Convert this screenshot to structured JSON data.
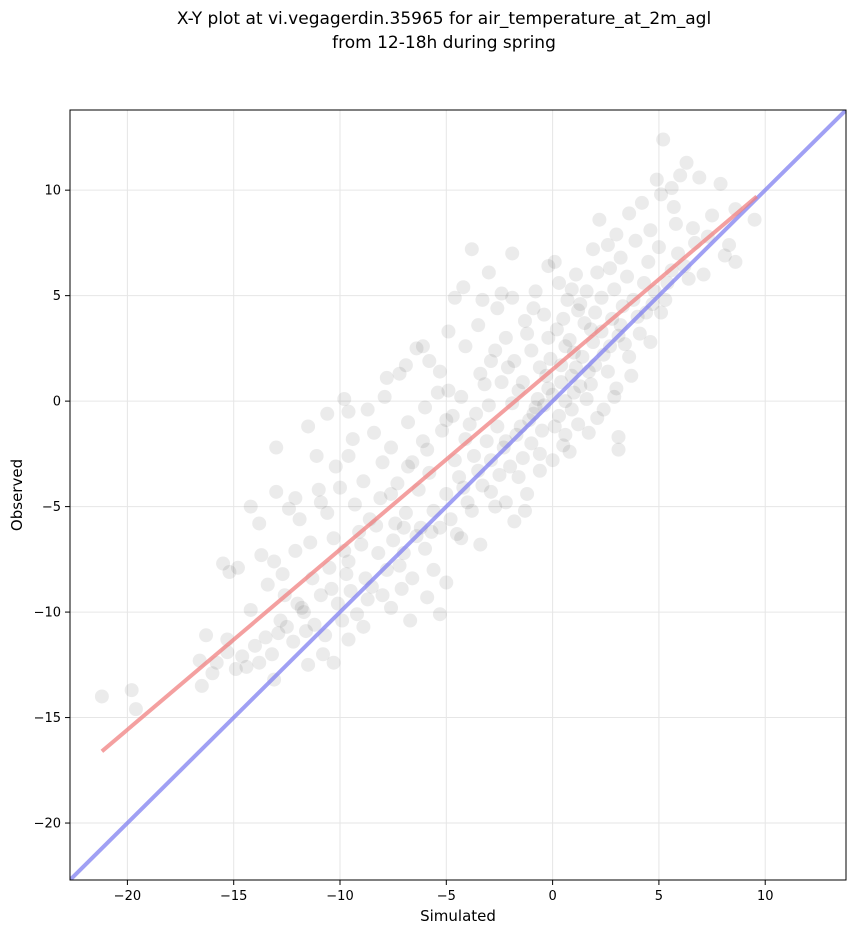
{
  "chart_data": {
    "type": "scatter",
    "title_line1": "X-Y plot at vi.vegagerdin.35965 for air_temperature_at_2m_agl",
    "title_line2": "from 12-18h during spring",
    "xlabel": "Simulated",
    "ylabel": "Observed",
    "xlim": [
      -22.7,
      13.8
    ],
    "ylim": [
      -22.7,
      13.8
    ],
    "xticks": [
      -20,
      -15,
      -10,
      -5,
      0,
      5,
      10
    ],
    "yticks": [
      -20,
      -15,
      -10,
      -5,
      0,
      5,
      10
    ],
    "xtick_labels": [
      "−20",
      "−15",
      "−10",
      "−5",
      "0",
      "5",
      "10"
    ],
    "ytick_labels": [
      "−20",
      "−15",
      "−10",
      "−5",
      "0",
      "5",
      "10"
    ],
    "grid": true,
    "point_color": "#000000",
    "point_alpha": 0.08,
    "regression_line": {
      "color": "#f08080",
      "x": [
        -21.2,
        9.6
      ],
      "y": [
        -16.6,
        9.7
      ]
    },
    "identity_line": {
      "color": "#8080f0",
      "x": [
        -22.7,
        13.8
      ],
      "y": [
        -22.7,
        13.8
      ]
    },
    "points": [
      {
        "x": -21.2,
        "y": -14.0
      },
      {
        "x": -19.8,
        "y": -13.7
      },
      {
        "x": -19.6,
        "y": -14.6
      },
      {
        "x": -16.6,
        "y": -12.3
      },
      {
        "x": -16.3,
        "y": -11.1
      },
      {
        "x": -16.5,
        "y": -13.5
      },
      {
        "x": -15.5,
        "y": -7.7
      },
      {
        "x": -15.2,
        "y": -8.1
      },
      {
        "x": -14.8,
        "y": -7.9
      },
      {
        "x": -13.7,
        "y": -7.3
      },
      {
        "x": -13.4,
        "y": -8.7
      },
      {
        "x": -13.1,
        "y": -7.6
      },
      {
        "x": -14.2,
        "y": -5.0
      },
      {
        "x": -13.8,
        "y": -5.8
      },
      {
        "x": -13.0,
        "y": -4.3
      },
      {
        "x": -13.0,
        "y": -2.2
      },
      {
        "x": -12.4,
        "y": -5.1
      },
      {
        "x": -12.1,
        "y": -4.6
      },
      {
        "x": -11.5,
        "y": -1.2
      },
      {
        "x": -11.1,
        "y": -2.6
      },
      {
        "x": -10.6,
        "y": -0.6
      },
      {
        "x": -9.8,
        "y": 0.1
      },
      {
        "x": -9.6,
        "y": -0.5
      },
      {
        "x": -7.8,
        "y": 1.1
      },
      {
        "x": -7.2,
        "y": 1.3
      },
      {
        "x": -6.4,
        "y": 2.5
      },
      {
        "x": -6.1,
        "y": 2.6
      },
      {
        "x": -4.6,
        "y": 4.9
      },
      {
        "x": -4.2,
        "y": 5.4
      },
      {
        "x": -3.8,
        "y": 7.2
      },
      {
        "x": -3.0,
        "y": 6.1
      },
      {
        "x": -1.9,
        "y": 7.0
      },
      {
        "x": -0.2,
        "y": 6.4
      },
      {
        "x": 0.1,
        "y": 6.6
      },
      {
        "x": 1.1,
        "y": 6.0
      },
      {
        "x": 2.2,
        "y": 8.6
      },
      {
        "x": 3.6,
        "y": 8.9
      },
      {
        "x": 4.9,
        "y": 10.5
      },
      {
        "x": 5.2,
        "y": 12.4
      },
      {
        "x": 5.6,
        "y": 10.1
      },
      {
        "x": 6.3,
        "y": 11.3
      },
      {
        "x": 6.9,
        "y": 10.6
      },
      {
        "x": 7.9,
        "y": 10.3
      },
      {
        "x": 8.6,
        "y": 9.1
      },
      {
        "x": 9.5,
        "y": 8.6
      },
      {
        "x": 8.1,
        "y": 6.9
      },
      {
        "x": 8.6,
        "y": 6.6
      },
      {
        "x": 6.4,
        "y": 5.8
      },
      {
        "x": 5.3,
        "y": 4.8
      },
      {
        "x": 4.4,
        "y": 4.2
      },
      {
        "x": 3.1,
        "y": -1.7
      },
      {
        "x": 3.1,
        "y": -2.3
      },
      {
        "x": 1.7,
        "y": -1.5
      },
      {
        "x": 0.6,
        "y": -1.6
      },
      {
        "x": -0.6,
        "y": -2.5
      },
      {
        "x": -1.2,
        "y": -4.4
      },
      {
        "x": -2.7,
        "y": -5.0
      },
      {
        "x": -1.8,
        "y": -5.7
      },
      {
        "x": -3.4,
        "y": -6.8
      },
      {
        "x": -4.3,
        "y": -6.5
      },
      {
        "x": -5.7,
        "y": -6.2
      },
      {
        "x": -5.6,
        "y": -8.0
      },
      {
        "x": -5.0,
        "y": -8.6
      },
      {
        "x": -5.3,
        "y": -10.1
      },
      {
        "x": -6.7,
        "y": -10.4
      },
      {
        "x": -7.1,
        "y": -8.9
      },
      {
        "x": -8.7,
        "y": -9.4
      },
      {
        "x": -9.2,
        "y": -10.1
      },
      {
        "x": -10.8,
        "y": -12.0
      },
      {
        "x": -11.5,
        "y": -12.5
      },
      {
        "x": -13.1,
        "y": -13.2
      },
      {
        "x": -13.8,
        "y": -12.4
      },
      {
        "x": -14.9,
        "y": -12.7
      },
      {
        "x": -15.3,
        "y": -11.3
      },
      {
        "x": -15.3,
        "y": -11.9
      },
      {
        "x": -14.2,
        "y": -9.9
      },
      {
        "x": -12.6,
        "y": -9.2
      },
      {
        "x": -11.8,
        "y": -9.8
      },
      {
        "x": -11.2,
        "y": -10.6
      },
      {
        "x": -10.4,
        "y": -8.9
      },
      {
        "x": -9.6,
        "y": -7.6
      },
      {
        "x": -9.1,
        "y": -6.2
      },
      {
        "x": -10.3,
        "y": -6.5
      },
      {
        "x": -10.9,
        "y": -4.8
      },
      {
        "x": -10.2,
        "y": -3.1
      },
      {
        "x": -9.6,
        "y": -2.6
      },
      {
        "x": -8.4,
        "y": -1.5
      },
      {
        "x": -8.9,
        "y": -3.8
      },
      {
        "x": -8.1,
        "y": -4.6
      },
      {
        "x": -7.4,
        "y": -5.8
      },
      {
        "x": -7.6,
        "y": -2.2
      },
      {
        "x": -6.8,
        "y": -1.0
      },
      {
        "x": -6.0,
        "y": -0.3
      },
      {
        "x": -5.3,
        "y": 1.4
      },
      {
        "x": -4.9,
        "y": 0.5
      },
      {
        "x": -4.1,
        "y": 2.6
      },
      {
        "x": -3.5,
        "y": 3.6
      },
      {
        "x": -2.6,
        "y": 4.4
      },
      {
        "x": -1.9,
        "y": 4.9
      },
      {
        "x": -1.2,
        "y": 3.2
      },
      {
        "x": -0.8,
        "y": 5.2
      },
      {
        "x": 0.3,
        "y": 5.6
      },
      {
        "x": 1.3,
        "y": 4.6
      },
      {
        "x": 2.1,
        "y": 6.1
      },
      {
        "x": 2.6,
        "y": 7.4
      },
      {
        "x": 3.2,
        "y": 6.8
      },
      {
        "x": 3.9,
        "y": 7.6
      },
      {
        "x": 4.6,
        "y": 8.1
      },
      {
        "x": 5.8,
        "y": 8.4
      },
      {
        "x": 6.6,
        "y": 8.2
      },
      {
        "x": 7.3,
        "y": 7.8
      },
      {
        "x": 7.1,
        "y": 6.0
      },
      {
        "x": 6.2,
        "y": 6.4
      },
      {
        "x": 5.6,
        "y": 6.2
      },
      {
        "x": 4.8,
        "y": 5.2
      },
      {
        "x": 4.1,
        "y": 3.2
      },
      {
        "x": 3.6,
        "y": 2.1
      },
      {
        "x": 3.0,
        "y": 0.6
      },
      {
        "x": 2.4,
        "y": -0.4
      },
      {
        "x": 1.8,
        "y": 0.8
      },
      {
        "x": 1.1,
        "y": 1.6
      },
      {
        "x": 0.6,
        "y": 2.6
      },
      {
        "x": 0.2,
        "y": 3.4
      },
      {
        "x": -0.3,
        "y": 1.2
      },
      {
        "x": -0.7,
        "y": 0.1
      },
      {
        "x": -1.1,
        "y": -0.9
      },
      {
        "x": -1.6,
        "y": 0.5
      },
      {
        "x": -2.1,
        "y": 1.6
      },
      {
        "x": -2.7,
        "y": 2.4
      },
      {
        "x": -3.2,
        "y": 0.8
      },
      {
        "x": -3.6,
        "y": -0.6
      },
      {
        "x": -4.1,
        "y": -1.8
      },
      {
        "x": -4.6,
        "y": -2.8
      },
      {
        "x": -5.2,
        "y": -1.4
      },
      {
        "x": -5.8,
        "y": -3.4
      },
      {
        "x": -6.3,
        "y": -4.2
      },
      {
        "x": -6.9,
        "y": -5.3
      },
      {
        "x": -7.5,
        "y": -6.6
      },
      {
        "x": -8.2,
        "y": -7.2
      },
      {
        "x": -8.8,
        "y": -8.4
      },
      {
        "x": -9.5,
        "y": -9.0
      },
      {
        "x": -10.1,
        "y": -9.6
      },
      {
        "x": -11.6,
        "y": -10.9
      },
      {
        "x": -12.2,
        "y": -11.4
      },
      {
        "x": -12.8,
        "y": -10.4
      },
      {
        "x": -14.0,
        "y": -11.6
      },
      {
        "x": -14.6,
        "y": -12.1
      },
      {
        "x": -16.0,
        "y": -12.9
      },
      {
        "x": -15.8,
        "y": -12.4
      },
      {
        "x": -2.3,
        "y": -2.2
      },
      {
        "x": -1.7,
        "y": -1.6
      },
      {
        "x": -0.9,
        "y": -0.6
      },
      {
        "x": -0.4,
        "y": -0.2
      },
      {
        "x": 0.0,
        "y": 0.3
      },
      {
        "x": 0.4,
        "y": 0.9
      },
      {
        "x": 0.9,
        "y": 1.2
      },
      {
        "x": 1.4,
        "y": 2.1
      },
      {
        "x": 1.9,
        "y": 2.8
      },
      {
        "x": 2.3,
        "y": 3.3
      },
      {
        "x": 2.8,
        "y": 3.9
      },
      {
        "x": 3.3,
        "y": 4.5
      },
      {
        "x": 2.0,
        "y": 4.2
      },
      {
        "x": 1.5,
        "y": 3.7
      },
      {
        "x": 0.8,
        "y": 2.9
      },
      {
        "x": -0.1,
        "y": 2.0
      },
      {
        "x": -0.6,
        "y": 1.6
      },
      {
        "x": -1.4,
        "y": 0.9
      },
      {
        "x": -1.9,
        "y": -0.1
      },
      {
        "x": -2.6,
        "y": -1.2
      },
      {
        "x": -3.1,
        "y": -1.9
      },
      {
        "x": -3.7,
        "y": -2.6
      },
      {
        "x": -4.4,
        "y": -3.6
      },
      {
        "x": -5.0,
        "y": -4.4
      },
      {
        "x": -5.6,
        "y": -5.2
      },
      {
        "x": -6.2,
        "y": -6.0
      },
      {
        "x": -7.0,
        "y": -7.2
      },
      {
        "x": -7.8,
        "y": -8.0
      },
      {
        "x": -8.5,
        "y": -8.8
      },
      {
        "x": -9.9,
        "y": -10.4
      },
      {
        "x": -10.7,
        "y": -11.1
      },
      {
        "x": -2.0,
        "y": -3.1
      },
      {
        "x": -1.0,
        "y": -2.0
      },
      {
        "x": 0.1,
        "y": -1.2
      },
      {
        "x": 0.9,
        "y": -0.4
      },
      {
        "x": 1.6,
        "y": 0.1
      },
      {
        "x": 2.6,
        "y": 1.4
      },
      {
        "x": 3.4,
        "y": 2.7
      },
      {
        "x": 4.0,
        "y": 4.0
      },
      {
        "x": 4.7,
        "y": 4.6
      },
      {
        "x": 5.4,
        "y": 5.6
      },
      {
        "x": 2.9,
        "y": 5.3
      },
      {
        "x": 2.3,
        "y": 4.9
      },
      {
        "x": 1.2,
        "y": 4.3
      },
      {
        "x": 0.5,
        "y": 3.9
      },
      {
        "x": -0.2,
        "y": 3.0
      },
      {
        "x": -1.0,
        "y": 2.4
      },
      {
        "x": -1.8,
        "y": 1.9
      },
      {
        "x": -2.4,
        "y": 0.9
      },
      {
        "x": -3.0,
        "y": -0.2
      },
      {
        "x": -3.9,
        "y": -1.1
      },
      {
        "x": -4.7,
        "y": -0.7
      },
      {
        "x": -5.4,
        "y": 0.4
      },
      {
        "x": -6.1,
        "y": -1.9
      },
      {
        "x": -6.6,
        "y": -2.9
      },
      {
        "x": -7.3,
        "y": -3.9
      },
      {
        "x": -8.0,
        "y": -2.9
      },
      {
        "x": -8.6,
        "y": -5.6
      },
      {
        "x": -9.3,
        "y": -4.9
      },
      {
        "x": -9.8,
        "y": -7.1
      },
      {
        "x": -10.5,
        "y": -7.9
      },
      {
        "x": -11.3,
        "y": -8.4
      },
      {
        "x": -12.0,
        "y": -9.6
      },
      {
        "x": -12.9,
        "y": -11.0
      },
      {
        "x": -13.5,
        "y": -11.2
      },
      {
        "x": -14.4,
        "y": -12.6
      },
      {
        "x": -4.8,
        "y": -5.6
      },
      {
        "x": -4.0,
        "y": -4.8
      },
      {
        "x": -3.3,
        "y": -4.0
      },
      {
        "x": -2.5,
        "y": -3.5
      },
      {
        "x": -1.4,
        "y": -2.7
      },
      {
        "x": -0.5,
        "y": -1.4
      },
      {
        "x": 0.3,
        "y": -0.7
      },
      {
        "x": 1.0,
        "y": 0.4
      },
      {
        "x": 1.7,
        "y": 1.4
      },
      {
        "x": 2.4,
        "y": 2.2
      },
      {
        "x": 3.1,
        "y": 3.1
      },
      {
        "x": 3.8,
        "y": 4.8
      },
      {
        "x": 4.3,
        "y": 5.6
      },
      {
        "x": 3.5,
        "y": 5.9
      },
      {
        "x": 2.7,
        "y": 6.3
      },
      {
        "x": 1.6,
        "y": 5.2
      },
      {
        "x": 0.7,
        "y": 4.8
      },
      {
        "x": -0.4,
        "y": 4.1
      },
      {
        "x": -1.3,
        "y": 3.8
      },
      {
        "x": -2.2,
        "y": 3.0
      },
      {
        "x": -2.9,
        "y": 1.9
      },
      {
        "x": -3.4,
        "y": 1.3
      },
      {
        "x": -4.3,
        "y": 0.2
      },
      {
        "x": -5.0,
        "y": -0.9
      },
      {
        "x": -5.9,
        "y": -2.3
      },
      {
        "x": -6.8,
        "y": -3.1
      },
      {
        "x": -7.6,
        "y": -4.4
      },
      {
        "x": -8.3,
        "y": -5.9
      },
      {
        "x": -9.0,
        "y": -6.8
      },
      {
        "x": -9.7,
        "y": -8.2
      },
      {
        "x": -10.9,
        "y": -9.2
      },
      {
        "x": -11.7,
        "y": -10.0
      },
      {
        "x": -12.5,
        "y": -10.7
      },
      {
        "x": -13.2,
        "y": -12.0
      },
      {
        "x": 0.6,
        "y": 0.0
      },
      {
        "x": 1.3,
        "y": 0.7
      },
      {
        "x": 2.0,
        "y": 1.7
      },
      {
        "x": 2.7,
        "y": 2.6
      },
      {
        "x": 3.2,
        "y": 3.6
      },
      {
        "x": 1.8,
        "y": 3.4
      },
      {
        "x": 1.0,
        "y": 2.3
      },
      {
        "x": 0.4,
        "y": 1.7
      },
      {
        "x": -0.2,
        "y": 0.6
      },
      {
        "x": -0.8,
        "y": -0.3
      },
      {
        "x": -1.5,
        "y": -1.2
      },
      {
        "x": -2.2,
        "y": -1.9
      },
      {
        "x": -2.9,
        "y": -2.8
      },
      {
        "x": -3.5,
        "y": -3.3
      },
      {
        "x": -4.2,
        "y": -4.1
      },
      {
        "x": -5.3,
        "y": -6.0
      },
      {
        "x": -6.0,
        "y": -7.0
      },
      {
        "x": -7.2,
        "y": -7.8
      },
      {
        "x": -8.0,
        "y": -9.2
      },
      {
        "x": 4.5,
        "y": 6.6
      },
      {
        "x": 5.0,
        "y": 7.3
      },
      {
        "x": 5.9,
        "y": 7.0
      },
      {
        "x": 6.7,
        "y": 7.5
      },
      {
        "x": 7.5,
        "y": 8.8
      },
      {
        "x": 8.3,
        "y": 7.4
      },
      {
        "x": 4.2,
        "y": 9.4
      },
      {
        "x": 5.1,
        "y": 9.8
      },
      {
        "x": 5.7,
        "y": 9.2
      },
      {
        "x": 6.0,
        "y": 10.7
      },
      {
        "x": 3.0,
        "y": 7.9
      },
      {
        "x": 1.9,
        "y": 7.2
      },
      {
        "x": 0.9,
        "y": 5.3
      },
      {
        "x": -0.9,
        "y": 4.4
      },
      {
        "x": -2.4,
        "y": 5.1
      },
      {
        "x": -3.3,
        "y": 4.8
      },
      {
        "x": -4.9,
        "y": 3.3
      },
      {
        "x": -5.8,
        "y": 1.9
      },
      {
        "x": -6.9,
        "y": 1.7
      },
      {
        "x": -7.9,
        "y": 0.2
      },
      {
        "x": -8.7,
        "y": -0.4
      },
      {
        "x": -9.4,
        "y": -1.8
      },
      {
        "x": -10.0,
        "y": -4.1
      },
      {
        "x": -10.6,
        "y": -5.3
      },
      {
        "x": -11.4,
        "y": -6.7
      },
      {
        "x": -12.1,
        "y": -7.1
      },
      {
        "x": -12.7,
        "y": -8.2
      },
      {
        "x": -11.0,
        "y": -4.2
      },
      {
        "x": -11.9,
        "y": -5.6
      },
      {
        "x": -2.9,
        "y": -4.3
      },
      {
        "x": -1.6,
        "y": -3.6
      },
      {
        "x": -0.6,
        "y": -3.3
      },
      {
        "x": 0.5,
        "y": -2.1
      },
      {
        "x": 1.2,
        "y": -1.1
      },
      {
        "x": 2.1,
        "y": -0.8
      },
      {
        "x": 2.9,
        "y": 0.2
      },
      {
        "x": 3.7,
        "y": 1.2
      },
      {
        "x": 4.6,
        "y": 2.8
      },
      {
        "x": 5.1,
        "y": 4.2
      },
      {
        "x": -6.4,
        "y": -6.4
      },
      {
        "x": -7.0,
        "y": -6.0
      },
      {
        "x": -3.8,
        "y": -5.2
      },
      {
        "x": -4.5,
        "y": -6.3
      },
      {
        "x": -2.2,
        "y": -4.8
      },
      {
        "x": -1.3,
        "y": -5.2
      },
      {
        "x": 0.0,
        "y": -2.8
      },
      {
        "x": 0.8,
        "y": -2.4
      },
      {
        "x": -6.6,
        "y": -8.4
      },
      {
        "x": -5.9,
        "y": -9.3
      },
      {
        "x": -7.6,
        "y": -9.8
      },
      {
        "x": -8.9,
        "y": -10.7
      },
      {
        "x": -9.6,
        "y": -11.3
      },
      {
        "x": -10.3,
        "y": -12.4
      }
    ]
  }
}
